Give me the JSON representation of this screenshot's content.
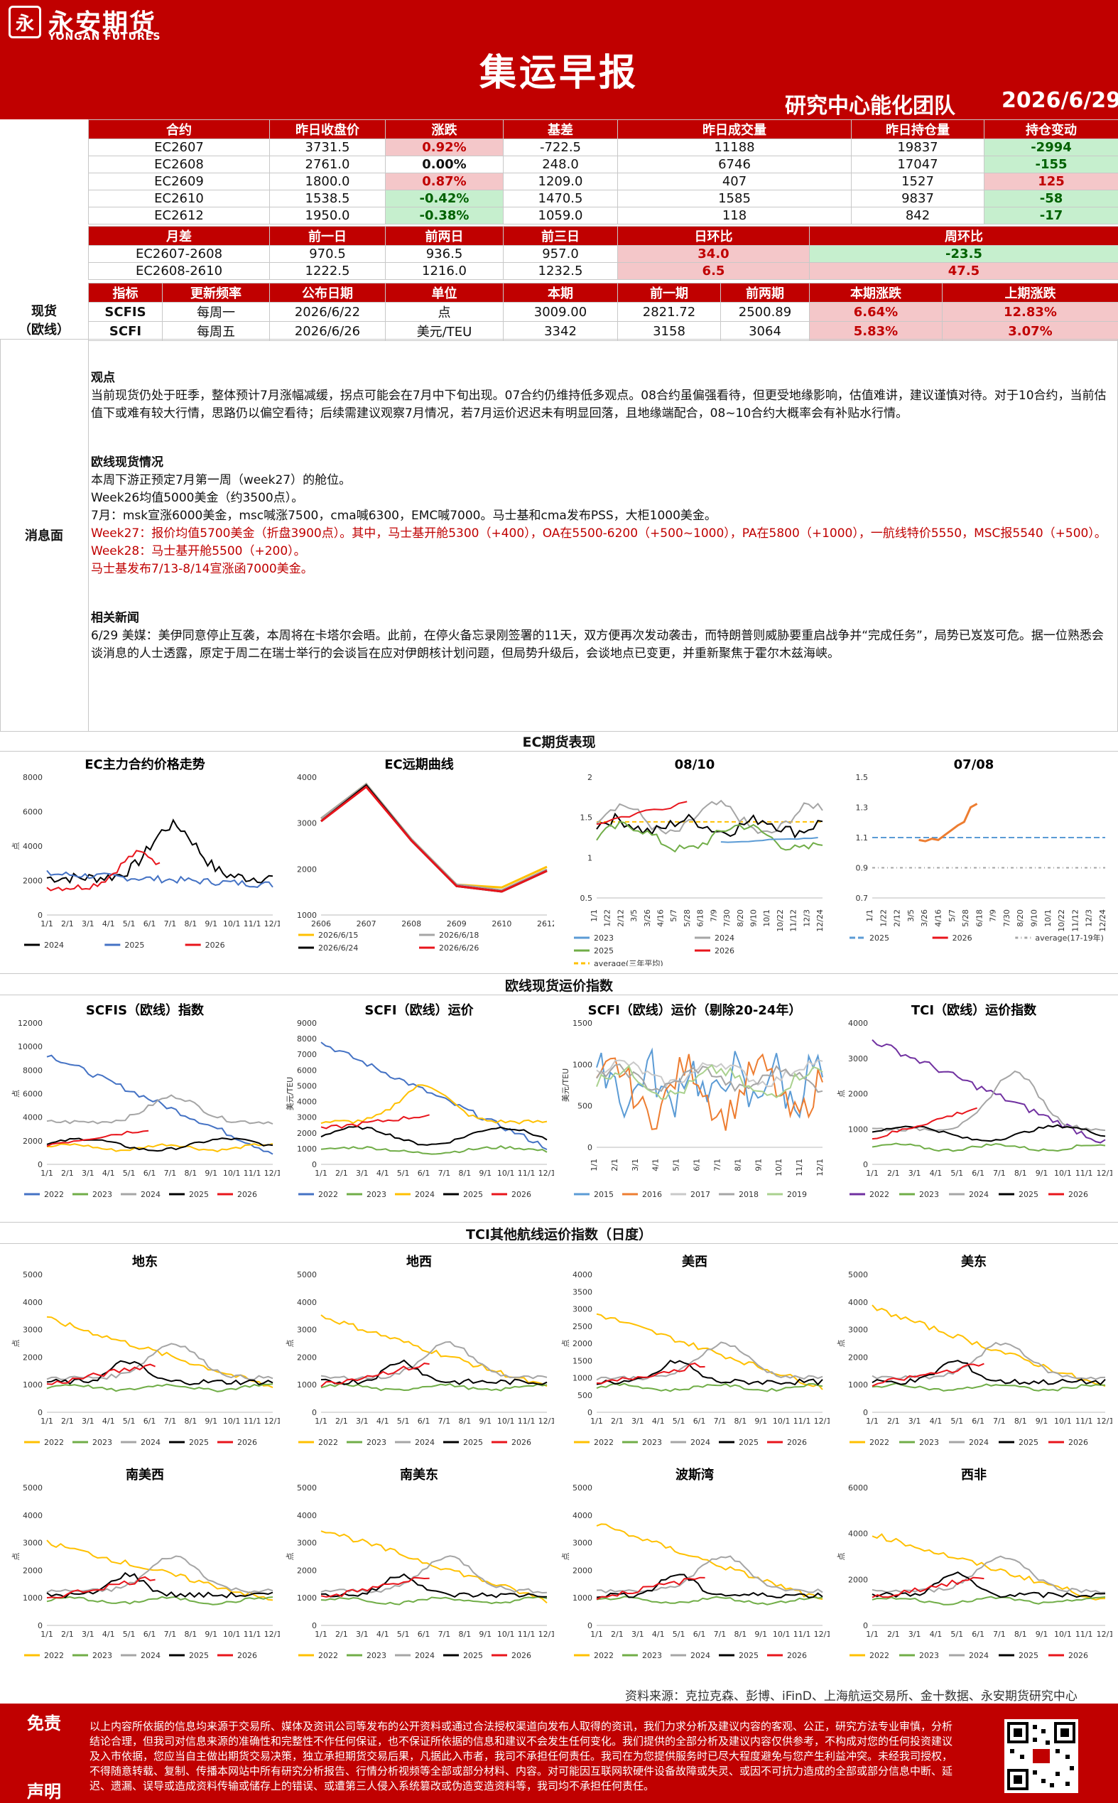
{
  "header": {
    "brand_cn": "永安期货",
    "brand_en": "YONGAN FUTURES",
    "logo_char": "永",
    "title": "集运早报",
    "team": "研究中心能化团队",
    "date": "2026/6/29"
  },
  "futures": {
    "headers": [
      "合约",
      "昨日收盘价",
      "涨跌",
      "基差",
      "昨日成交量",
      "昨日持仓量",
      "持仓变动"
    ],
    "rows": [
      {
        "contract": "EC2607",
        "close": "3731.5",
        "change": "0.92%",
        "basis": "-722.5",
        "volume": "11188",
        "oi": "19837",
        "oi_change": "-2994"
      },
      {
        "contract": "EC2608",
        "close": "2761.0",
        "change": "0.00%",
        "basis": "248.0",
        "volume": "6746",
        "oi": "17047",
        "oi_change": "-155"
      },
      {
        "contract": "EC2609",
        "close": "1800.0",
        "change": "0.87%",
        "basis": "1209.0",
        "volume": "407",
        "oi": "1527",
        "oi_change": "125"
      },
      {
        "contract": "EC2610",
        "close": "1538.5",
        "change": "-0.42%",
        "basis": "1470.5",
        "volume": "1585",
        "oi": "9837",
        "oi_change": "-58"
      },
      {
        "contract": "EC2612",
        "close": "1950.0",
        "change": "-0.38%",
        "basis": "1059.0",
        "volume": "118",
        "oi": "842",
        "oi_change": "-17"
      }
    ]
  },
  "spreads": {
    "headers": [
      "月差",
      "前一日",
      "前两日",
      "前三日",
      "日环比",
      "周环比"
    ],
    "rows": [
      {
        "name": "EC2607-2608",
        "d1": "970.5",
        "d2": "936.5",
        "d3": "957.0",
        "dod": "34.0",
        "wow": "-23.5"
      },
      {
        "name": "EC2608-2610",
        "d1": "1222.5",
        "d2": "1216.0",
        "d3": "1232.5",
        "dod": "6.5",
        "wow": "47.5"
      }
    ]
  },
  "spot": {
    "side_label_1": "现货",
    "side_label_2": "（欧线）",
    "headers": [
      "指标",
      "更新频率",
      "公布日期",
      "单位",
      "本期",
      "前一期",
      "前两期",
      "本期涨跌",
      "上期涨跌"
    ],
    "rows": [
      {
        "index": "SCFIS",
        "freq": "每周一",
        "date": "2026/6/22",
        "unit": "点",
        "cur": "3009.00",
        "prev": "2821.72",
        "prev2": "2500.89",
        "chg": "6.64%",
        "prev_chg": "12.83%"
      },
      {
        "index": "SCFI",
        "freq": "每周五",
        "date": "2026/6/26",
        "unit": "美元/TEU",
        "cur": "3342",
        "prev": "3158",
        "prev2": "3064",
        "chg": "5.83%",
        "prev_chg": "3.07%"
      }
    ]
  },
  "news": {
    "side_label": "消息面",
    "view_title": "观点",
    "view_text": "当前现货仍处于旺季，整体预计7月涨幅减缓，拐点可能会在7月中下旬出现。07合约仍维持低多观点。08合约虽偏强看待，但更受地缘影响，估值难讲，建议谨慎对待。对于10合约，当前估值下或难有较大行情，思路仍以偏空看待；后续需建议观察7月情况，若7月运价迟迟未有明显回落，且地缘端配合，08~10合约大概率会有补贴水行情。",
    "spot_title": "欧线现货情况",
    "spot_lines": [
      "本周下游正预定7月第一周（week27）的舱位。",
      "Week26均值5000美金（约3500点）。",
      "7月：msk宣涨6000美金，msc喊涨7500，cma喊6300，EMC喊7000。马士基和cma发布PSS，大柜1000美金。"
    ],
    "spot_red_lines": [
      "Week27：报价均值5700美金（折盘3900点）。其中，马士基开舱5300（+400），OA在5500-6200（+500~1000），PA在5800（+1000），一航线特价5550，MSC报5540（+500）。",
      "Week28：马士基开舱5500（+200）。",
      "马士基发布7/13-8/14宣涨函7000美金。"
    ],
    "related_title": "相关新闻",
    "related_text": "6/29 美媒：美伊同意停止互袭，本周将在卡塔尔会晤。此前，在停火备忘录刚签署的11天，双方便再次发动袭击，而特朗普则威胁要重启战争并“完成任务”，局势已岌岌可危。据一位熟悉会谈消息的人士透露，原定于周二在瑞士举行的会谈旨在应对伊朗核计划问题，但局势升级后，会谈地点已变更，并重新聚焦于霍尔木兹海峡。"
  },
  "sections": {
    "ec": "EC期货表现",
    "spot_idx": "欧线现货运价指数",
    "tci": "TCI其他航线运价指数（日度）"
  },
  "colors": {
    "red": "#e8141b",
    "black": "#000000",
    "blue": "#4472c4",
    "yellow": "#ffc000",
    "gray": "#a5a5a5",
    "green": "#70ad47",
    "orange": "#ed7d31",
    "lightgray": "#c9c9c9",
    "lightgreen": "#a9d18e",
    "lightblue": "#5b9bd5",
    "purple": "#7030a0",
    "peach": "#f4b183"
  },
  "charts": {
    "ec_main": {
      "title": "EC主力合约价格走势",
      "ylabel": "点",
      "yticks": [
        "0",
        "2000",
        "4000",
        "6000",
        "8000"
      ],
      "xticks": [
        "1/1",
        "2/1",
        "3/1",
        "4/1",
        "5/1",
        "6/1",
        "7/1",
        "8/1",
        "9/1",
        "10/1",
        "11/1",
        "12/1"
      ],
      "legend": [
        "2024",
        "2025",
        "2026"
      ]
    },
    "ec_curve": {
      "title": "EC远期曲线",
      "yticks": [
        "1000",
        "2000",
        "3000",
        "4000"
      ],
      "xticks": [
        "2606",
        "2607",
        "2608",
        "2609",
        "2610",
        "2612"
      ],
      "legend": [
        "2026/6/15",
        "2026/6/18",
        "2026/6/24",
        "2026/6/26"
      ]
    },
    "ec_0810": {
      "title": "08/10",
      "yticks": [
        "0.5",
        "1",
        "1.5",
        "2"
      ],
      "xticks": [
        "1/1",
        "1/22",
        "2/12",
        "3/5",
        "3/26",
        "4/16",
        "5/7",
        "5/28",
        "6/18",
        "7/9",
        "7/30",
        "8/20",
        "9/10",
        "10/1",
        "10/22",
        "11/12",
        "12/3",
        "12/24"
      ],
      "legend": [
        "2023",
        "2024",
        "2025",
        "2026",
        "average(三年平均)"
      ]
    },
    "ec_0708": {
      "title": "07/08",
      "yticks": [
        "0.7",
        "0.9",
        "1.1",
        "1.3",
        "1.5"
      ],
      "xticks": [
        "1/1",
        "1/22",
        "2/12",
        "3/5",
        "3/26",
        "4/16",
        "5/7",
        "5/28",
        "6/18",
        "7/9",
        "7/30",
        "8/20",
        "9/10",
        "10/1",
        "10/22",
        "11/12",
        "12/3",
        "12/24"
      ],
      "legend": [
        "2025",
        "2026",
        "average(17-19年)"
      ]
    },
    "scfis": {
      "title": "SCFIS（欧线）指数",
      "ylabel": "点",
      "yticks": [
        "0",
        "2000",
        "4000",
        "6000",
        "8000",
        "10000",
        "12000"
      ],
      "xticks": [
        "1/1",
        "2/1",
        "3/1",
        "4/1",
        "5/1",
        "6/1",
        "7/1",
        "8/1",
        "9/1",
        "10/1",
        "11/1",
        "12/1"
      ],
      "legend": [
        "2022",
        "2023",
        "2024",
        "2025",
        "2026"
      ]
    },
    "scfi": {
      "title": "SCFI（欧线）运价",
      "ylabel": "美元/TEU",
      "yticks": [
        "0",
        "1000",
        "2000",
        "3000",
        "4000",
        "5000",
        "6000",
        "7000",
        "8000",
        "9000"
      ],
      "xticks": [
        "1/1",
        "2/1",
        "3/1",
        "4/1",
        "5/1",
        "6/1",
        "7/1",
        "8/1",
        "9/1",
        "10/1",
        "11/1",
        "12/1"
      ],
      "legend": [
        "2022",
        "2023",
        "2024",
        "2025",
        "2026"
      ]
    },
    "scfi_ex": {
      "title": "SCFI（欧线）运价（剔除20-24年）",
      "ylabel": "美元/TEU",
      "yticks": [
        "0",
        "500",
        "1000",
        "1500"
      ],
      "xticks": [
        "1/1",
        "2/1",
        "3/1",
        "4/1",
        "5/1",
        "6/1",
        "7/1",
        "8/1",
        "9/1",
        "10/1",
        "11/1",
        "12/1"
      ],
      "legend": [
        "2015",
        "2016",
        "2017",
        "2018",
        "2019"
      ]
    },
    "tci_eu": {
      "title": "TCI（欧线）运价指数",
      "ylabel": "点",
      "yticks": [
        "0",
        "1000",
        "2000",
        "3000",
        "4000"
      ],
      "xticks": [
        "1/1",
        "2/1",
        "3/1",
        "4/1",
        "5/1",
        "6/1",
        "7/1",
        "8/1",
        "9/1",
        "10/1",
        "11/1",
        "12/1"
      ],
      "legend": [
        "2022",
        "2023",
        "2024",
        "2025",
        "2026"
      ]
    },
    "tci_routes": [
      {
        "title": "地东",
        "yticks": [
          "0",
          "1000",
          "2000",
          "3000",
          "4000",
          "5000"
        ]
      },
      {
        "title": "地西",
        "yticks": [
          "0",
          "1000",
          "2000",
          "3000",
          "4000",
          "5000"
        ]
      },
      {
        "title": "美西",
        "yticks": [
          "0",
          "500",
          "1000",
          "1500",
          "2000",
          "2500",
          "3000",
          "3500",
          "4000"
        ]
      },
      {
        "title": "美东",
        "yticks": [
          "0",
          "1000",
          "2000",
          "3000",
          "4000",
          "5000"
        ]
      },
      {
        "title": "南美西",
        "yticks": [
          "0",
          "1000",
          "2000",
          "3000",
          "4000",
          "5000"
        ]
      },
      {
        "title": "南美东",
        "yticks": [
          "0",
          "1000",
          "2000",
          "3000",
          "4000",
          "5000"
        ]
      },
      {
        "title": "波斯湾",
        "yticks": [
          "0",
          "1000",
          "2000",
          "3000",
          "4000",
          "5000"
        ]
      },
      {
        "title": "西非",
        "yticks": [
          "0",
          "2000",
          "4000",
          "6000"
        ]
      }
    ],
    "tci_xticks": [
      "1/1",
      "2/1",
      "3/1",
      "4/1",
      "5/1",
      "6/1",
      "7/1",
      "8/1",
      "9/1",
      "10/1",
      "11/1",
      "12/1"
    ],
    "tci_legend": [
      "2022",
      "2023",
      "2024",
      "2025",
      "2026"
    ],
    "tci_ylabel": "点"
  },
  "sources": "资料来源：克拉克森、彭博、iFinD、上海航运交易所、金十数据、永安期货研究中心",
  "footer": {
    "label1": "免责",
    "label2": "声明",
    "text": "以上内容所依据的信息均来源于交易所、媒体及资讯公司等发布的公开资料或通过合法授权渠道向发布人取得的资讯，我们力求分析及建议内容的客观、公正，研究方法专业审慎，分析结论合理，但我司对信息来源的准确性和完整性不作任何保证，也不保证所依据的信息和建议不会发生任何变化。我们提供的全部分析及建议内容仅供参考，不构成对您的任何投资建议及入市依据，您应当自主做出期货交易决策，独立承担期货交易后果，凡据此入市者，我司不承担任何责任。我司在为您提供服务时已尽大程度避免与您产生利益冲突。未经我司授权，不得随意转载、复制、传播本网站中所有研究分析报告、行情分析视频等全部或部分材料、内容。对可能因互联网软硬件设备故障或失灵、或因不可抗力造成的全部或部分信息中断、延迟、遗漏、误导或造成资料传输或储存上的错误、或遭第三人侵入系统篡改或伪造变造资料等，我司均不承担任何责任。"
  }
}
